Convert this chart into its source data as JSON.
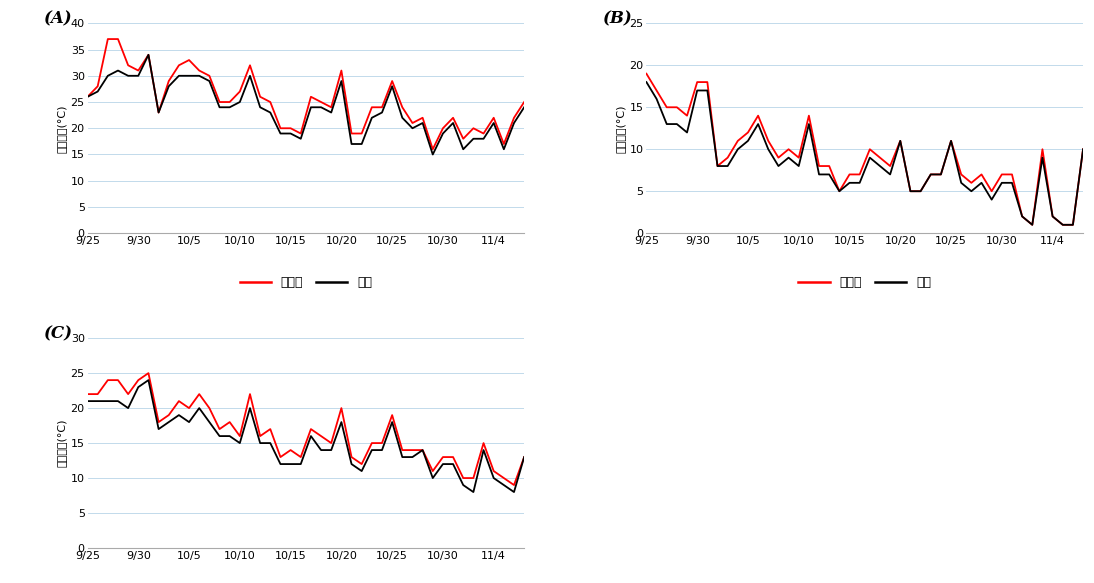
{
  "x_labels": [
    "9/25",
    "9/30",
    "10/5",
    "10/10",
    "10/15",
    "10/20",
    "10/25",
    "10/30",
    "11/4"
  ],
  "panel_labels": [
    "(A)",
    "(B)",
    "(C)"
  ],
  "ylabel_A": "최고온도(°C)",
  "ylabel_B": "최저온도(°C)",
  "ylabel_C": "평균온도(°C)",
  "ylim_A": [
    0,
    40
  ],
  "ylim_B": [
    0,
    25
  ],
  "ylim_C": [
    0,
    30
  ],
  "yticks_A": [
    0,
    5,
    10,
    15,
    20,
    25,
    30,
    35,
    40
  ],
  "yticks_B": [
    0,
    5,
    10,
    15,
    20,
    25
  ],
  "yticks_C": [
    0,
    5,
    10,
    15,
    20,
    25,
    30
  ],
  "legend_labels": [
    "무가온",
    "노지"
  ],
  "line_color_mugaon": "#ff0000",
  "line_color_noji": "#000000",
  "background_color": "#ffffff",
  "mugaon_A": [
    26,
    28,
    37,
    37,
    32,
    31,
    34,
    23,
    29,
    32,
    33,
    31,
    30,
    25,
    25,
    27,
    32,
    26,
    25,
    20,
    20,
    19,
    26,
    25,
    24,
    31,
    19,
    19,
    24,
    24,
    29,
    24,
    21,
    22,
    16,
    20,
    22,
    18,
    20,
    19,
    22,
    17,
    22,
    25
  ],
  "noji_A": [
    26,
    27,
    30,
    31,
    30,
    30,
    34,
    23,
    28,
    30,
    30,
    30,
    29,
    24,
    24,
    25,
    30,
    24,
    23,
    19,
    19,
    18,
    24,
    24,
    23,
    29,
    17,
    17,
    22,
    23,
    28,
    22,
    20,
    21,
    15,
    19,
    21,
    16,
    18,
    18,
    21,
    16,
    21,
    24
  ],
  "mugaon_B": [
    19,
    17,
    15,
    15,
    14,
    18,
    18,
    8,
    9,
    11,
    12,
    14,
    11,
    9,
    10,
    9,
    14,
    8,
    8,
    5,
    7,
    7,
    10,
    9,
    8,
    11,
    5,
    5,
    7,
    7,
    11,
    7,
    6,
    7,
    5,
    7,
    7,
    2,
    1,
    10,
    2,
    1,
    1,
    10
  ],
  "noji_B": [
    18,
    16,
    13,
    13,
    12,
    17,
    17,
    8,
    8,
    10,
    11,
    13,
    10,
    8,
    9,
    8,
    13,
    7,
    7,
    5,
    6,
    6,
    9,
    8,
    7,
    11,
    5,
    5,
    7,
    7,
    11,
    6,
    5,
    6,
    4,
    6,
    6,
    2,
    1,
    9,
    2,
    1,
    1,
    10
  ],
  "mugaon_C": [
    22,
    22,
    24,
    24,
    22,
    24,
    25,
    18,
    19,
    21,
    20,
    22,
    20,
    17,
    18,
    16,
    22,
    16,
    17,
    13,
    14,
    13,
    17,
    16,
    15,
    20,
    13,
    12,
    15,
    15,
    19,
    14,
    14,
    14,
    11,
    13,
    13,
    10,
    10,
    15,
    11,
    10,
    9,
    13
  ],
  "noji_C": [
    21,
    21,
    21,
    21,
    20,
    23,
    24,
    17,
    18,
    19,
    18,
    20,
    18,
    16,
    16,
    15,
    20,
    15,
    15,
    12,
    12,
    12,
    16,
    14,
    14,
    18,
    12,
    11,
    14,
    14,
    18,
    13,
    13,
    14,
    10,
    12,
    12,
    9,
    8,
    14,
    10,
    9,
    8,
    13
  ],
  "n_points": 44,
  "x_tick_indices": [
    0,
    5,
    10,
    15,
    20,
    25,
    30,
    35,
    40
  ]
}
